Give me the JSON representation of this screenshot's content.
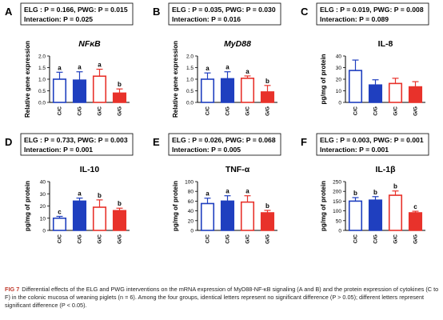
{
  "chart_data": [
    {
      "panel": "A",
      "type": "bar",
      "stats": {
        "line1": "ELG : P = 0.166, PWG: P = 0.015",
        "line2": "Interaction: P = 0.025"
      },
      "title": "NFκB",
      "title_italic": true,
      "ylabel": "Relative gene expression",
      "ylim": [
        0,
        2.0
      ],
      "yticks": [
        "0.0",
        "0.5",
        "1.0",
        "1.5",
        "2.0"
      ],
      "categories": [
        "C/C",
        "C/G",
        "G/C",
        "G/G"
      ],
      "values": [
        1.0,
        0.96,
        1.13,
        0.4
      ],
      "errors": [
        0.3,
        0.36,
        0.3,
        0.18
      ],
      "letters": [
        "a",
        "a",
        "a",
        "b"
      ]
    },
    {
      "panel": "B",
      "type": "bar",
      "stats": {
        "line1": "ELG : P = 0.035, PWG: P = 0.030",
        "line2": "Interaction: P = 0.016"
      },
      "title": "MyD88",
      "title_italic": true,
      "ylabel": "Relative gene expression",
      "ylim": [
        0,
        2.0
      ],
      "yticks": [
        "0.0",
        "0.5",
        "1.0",
        "1.5",
        "2.0"
      ],
      "categories": [
        "C/C",
        "C/G",
        "G/C",
        "G/G"
      ],
      "values": [
        1.0,
        1.02,
        1.04,
        0.45
      ],
      "errors": [
        0.27,
        0.3,
        0.1,
        0.28
      ],
      "letters": [
        "a",
        "a",
        "a",
        "b"
      ]
    },
    {
      "panel": "C",
      "type": "bar",
      "stats": {
        "line1": "ELG : P = 0.019, PWG: P = 0.008",
        "line2": "Interaction: P = 0.089"
      },
      "title": "IL-8",
      "title_italic": false,
      "ylabel": "pg/mg of protein",
      "ylim": [
        0,
        40
      ],
      "yticks": [
        "0",
        "10",
        "20",
        "30",
        "40"
      ],
      "categories": [
        "C/C",
        "C/G",
        "G/C",
        "G/G"
      ],
      "values": [
        27.5,
        15.0,
        16.3,
        13.4
      ],
      "errors": [
        9.0,
        4.5,
        4.5,
        4.5
      ],
      "letters": [
        "",
        "",
        "",
        ""
      ]
    },
    {
      "panel": "D",
      "type": "bar",
      "stats": {
        "line1": "ELG : P = 0.733, PWG: P = 0.003",
        "line2": "Interaction: P = 0.001"
      },
      "title": "IL-10",
      "title_italic": false,
      "ylabel": "pg/mg of protein",
      "ylim": [
        0,
        40
      ],
      "yticks": [
        "0",
        "10",
        "20",
        "30",
        "40"
      ],
      "categories": [
        "C/C",
        "C/G",
        "G/C",
        "G/G"
      ],
      "values": [
        10.0,
        24.0,
        19.0,
        16.2
      ],
      "errors": [
        1.5,
        2.5,
        6.0,
        2.0
      ],
      "letters": [
        "c",
        "a",
        "b",
        "b"
      ]
    },
    {
      "panel": "E",
      "type": "bar",
      "stats": {
        "line1": "ELG : P = 0.026, PWG: P = 0.068",
        "line2": "Interaction: P = 0.005"
      },
      "title": "TNF-α",
      "title_italic": false,
      "ylabel": "pg/mg of protein",
      "ylim": [
        0,
        100
      ],
      "yticks": [
        "0",
        "20",
        "40",
        "60",
        "80",
        "100"
      ],
      "categories": [
        "C/C",
        "C/G",
        "G/C",
        "G/G"
      ],
      "values": [
        55,
        60,
        58,
        36
      ],
      "errors": [
        11,
        11,
        13,
        5
      ],
      "letters": [
        "a",
        "a",
        "a",
        "b"
      ]
    },
    {
      "panel": "F",
      "type": "bar",
      "stats": {
        "line1": "ELG : P = 0.003, PWG: P = 0.001",
        "line2": "Interaction: P = 0.001"
      },
      "title": "IL-1β",
      "title_italic": false,
      "ylabel": "pg/mg of protein",
      "ylim": [
        0,
        250
      ],
      "yticks": [
        "0",
        "50",
        "100",
        "150",
        "200",
        "250"
      ],
      "categories": [
        "C/C",
        "C/G",
        "G/C",
        "G/G"
      ],
      "values": [
        150,
        155,
        180,
        90
      ],
      "errors": [
        18,
        18,
        22,
        8
      ],
      "letters": [
        "b",
        "b",
        "b",
        "c"
      ]
    }
  ],
  "series_colors": {
    "outline_blue": "#1f3fbf",
    "fill_blue": "#1f3fbf",
    "outline_red": "#e8322b",
    "fill_red": "#e8322b"
  },
  "caption": {
    "label": "FIG 7",
    "text": "Differential effects of the ELG and PWG interventions on the mRNA expression of MyD88-NF-κB signaling (A and B) and the protein expression of cytokines (C to F) in the colonic mucosa of weaning piglets (n = 6). Among the four groups, identical letters represent no significant difference (P > 0.05); different letters represent significant difference (P < 0.05)."
  }
}
